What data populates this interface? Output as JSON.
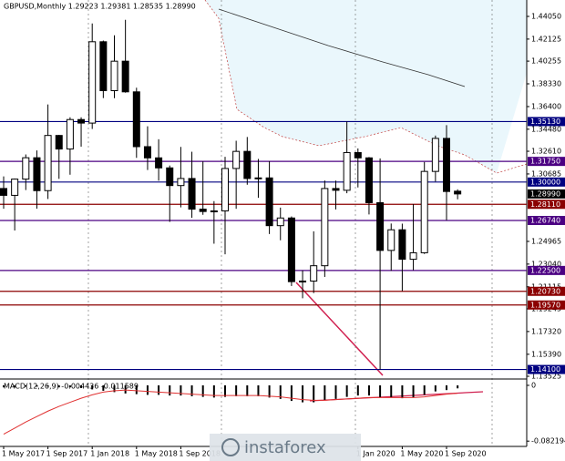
{
  "chart_data": {
    "type": "candlestick",
    "title": "GBPUSD,Monthly  1.29223 1.29381 1.28535 1.28990",
    "categories": [
      "1 May 2017",
      null,
      null,
      null,
      "1 Sep 2017",
      null,
      null,
      null,
      "1 Jan 2018",
      null,
      null,
      null,
      "1 May 2018",
      null,
      null,
      null,
      "1 Sep 2018",
      null,
      null,
      null,
      null,
      null,
      null,
      null,
      null,
      null,
      null,
      null,
      null,
      null,
      null,
      null,
      "1 Jan 2020",
      null,
      null,
      null,
      "1 May 2020",
      null,
      null,
      null,
      "1 Sep 2020",
      null
    ],
    "open": [
      1.2945,
      1.2887,
      1.3025,
      1.3206,
      1.2927,
      1.3395,
      1.328,
      1.353,
      1.35,
      1.419,
      1.3775,
      1.4025,
      1.3765,
      1.33,
      1.3205,
      1.312,
      1.297,
      1.303,
      1.277,
      1.275,
      1.2755,
      1.3115,
      1.326,
      1.303,
      1.3035,
      1.263,
      1.2695,
      1.2155,
      1.216,
      1.229,
      1.2945,
      1.293,
      1.325,
      1.3205,
      1.2825,
      1.242,
      1.2595,
      1.2345,
      1.24,
      1.309,
      1.337,
      1.29223
    ],
    "high": [
      1.3048,
      1.303,
      1.3234,
      1.3268,
      1.3658,
      1.34,
      1.3549,
      1.3549,
      1.4345,
      1.42,
      1.4245,
      1.4376,
      1.38,
      1.3473,
      1.3363,
      1.314,
      1.3298,
      1.3257,
      1.3175,
      1.2838,
      1.3214,
      1.335,
      1.3382,
      1.3196,
      1.3177,
      1.2783,
      1.2708,
      1.225,
      1.2582,
      1.3013,
      1.3012,
      1.3514,
      1.3285,
      1.3212,
      1.32,
      1.2648,
      1.2647,
      1.2813,
      1.317,
      1.3394,
      1.3482,
      1.29381
    ],
    "low": [
      1.2773,
      1.2589,
      1.2932,
      1.2774,
      1.2856,
      1.3027,
      1.3062,
      1.33,
      1.345,
      1.3712,
      1.3711,
      1.3758,
      1.3205,
      1.3102,
      1.3011,
      1.2662,
      1.2785,
      1.2696,
      1.2722,
      1.2477,
      1.2387,
      1.2773,
      1.2977,
      1.2866,
      1.2559,
      1.2506,
      1.2118,
      1.2014,
      1.2058,
      1.2195,
      1.2768,
      1.2905,
      1.2954,
      1.2725,
      1.141,
      1.2247,
      1.2075,
      1.2252,
      1.239,
      1.3004,
      1.2676,
      1.28535
    ],
    "close": [
      1.2887,
      1.3025,
      1.3206,
      1.2927,
      1.3395,
      1.328,
      1.353,
      1.35,
      1.419,
      1.3775,
      1.4025,
      1.3765,
      1.33,
      1.3205,
      1.312,
      1.297,
      1.303,
      1.277,
      1.275,
      1.2755,
      1.3115,
      1.326,
      1.303,
      1.3035,
      1.263,
      1.2695,
      1.2155,
      1.216,
      1.229,
      1.2945,
      1.293,
      1.325,
      1.3205,
      1.2825,
      1.242,
      1.2595,
      1.2345,
      1.24,
      1.309,
      1.337,
      1.292,
      1.2899
    ],
    "ylim": [
      1.1337,
      1.4544
    ],
    "yticks": [
      {
        "value": 1.4405,
        "label": "1.44050"
      },
      {
        "value": 1.42125,
        "label": "1.42125"
      },
      {
        "value": 1.40255,
        "label": "1.40255"
      },
      {
        "value": 1.3833,
        "label": "1.38330"
      },
      {
        "value": 1.364,
        "label": "1.36400"
      },
      {
        "value": 1.3448,
        "label": "1.34480"
      },
      {
        "value": 1.3261,
        "label": "1.32610"
      },
      {
        "value": 1.30685,
        "label": "1.30685"
      },
      {
        "value": 1.24965,
        "label": "1.24965"
      },
      {
        "value": 1.2304,
        "label": "1.23040"
      },
      {
        "value": 1.21115,
        "label": "1.21115"
      },
      {
        "value": 1.19245,
        "label": "1.19245"
      },
      {
        "value": 1.1732,
        "label": "1.17320"
      },
      {
        "value": 1.1539,
        "label": "1.15390"
      },
      {
        "value": 1.13525,
        "label": "1.13525"
      }
    ],
    "levels": [
      {
        "value": 1.3513,
        "label": "1.35130",
        "color": "#000080"
      },
      {
        "value": 1.3175,
        "label": "1.31750",
        "color": "#4b0082"
      },
      {
        "value": 1.3,
        "label": "1.30000",
        "color": "#000080"
      },
      {
        "value": 1.2811,
        "label": "1.28110",
        "color": "#8b0000"
      },
      {
        "value": 1.2674,
        "label": "1.26740",
        "color": "#4b0082"
      },
      {
        "value": 1.225,
        "label": "1.22500",
        "color": "#4b0082"
      },
      {
        "value": 1.2073,
        "label": "1.20730",
        "color": "#8b0000"
      },
      {
        "value": 1.1957,
        "label": "1.19570",
        "color": "#8b0000"
      },
      {
        "value": 1.141,
        "label": "1.14100",
        "color": "#000080"
      }
    ],
    "current_price": {
      "value": 1.2899,
      "label": "1.28990"
    },
    "macd": {
      "label": "MACD(12,26,9) -0.004436 -0.011589",
      "histogram": [
        -0.003,
        -0.003,
        -0.002,
        -0.002,
        -0.002,
        -0.003,
        -0.003,
        -0.004,
        -0.006,
        -0.008,
        -0.01,
        -0.012,
        -0.013,
        -0.014,
        -0.014,
        -0.015,
        -0.015,
        -0.016,
        -0.017,
        -0.018,
        -0.017,
        -0.016,
        -0.016,
        -0.016,
        -0.018,
        -0.02,
        -0.023,
        -0.025,
        -0.025,
        -0.022,
        -0.02,
        -0.017,
        -0.015,
        -0.015,
        -0.018,
        -0.018,
        -0.019,
        -0.018,
        -0.014,
        -0.009,
        -0.007,
        -0.004436
      ],
      "signal": [
        -0.072,
        -0.063,
        -0.054,
        -0.046,
        -0.038,
        -0.031,
        -0.025,
        -0.019,
        -0.014,
        -0.01,
        -0.008,
        -0.007,
        -0.008,
        -0.009,
        -0.01,
        -0.011,
        -0.012,
        -0.013,
        -0.014,
        -0.015,
        -0.015,
        -0.015,
        -0.015,
        -0.015,
        -0.016,
        -0.017,
        -0.019,
        -0.021,
        -0.022,
        -0.022,
        -0.021,
        -0.02,
        -0.019,
        -0.018,
        -0.018,
        -0.018,
        -0.018,
        -0.018,
        -0.017,
        -0.015,
        -0.013,
        -0.011589
      ],
      "ylim": [
        -0.09,
        0.008
      ],
      "yticks": [
        0,
        -0.082194
      ]
    },
    "watermark": "instaforex"
  }
}
